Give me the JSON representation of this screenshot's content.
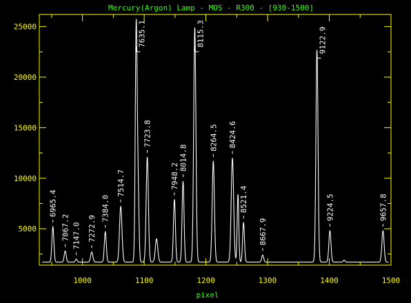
{
  "colors": {
    "background": "#000000",
    "axes": "#ffff00",
    "title": "#39ff14",
    "trace": "#ffffff",
    "labels": "#ffffff"
  },
  "chart_data": {
    "type": "line",
    "title": "Mercury(Argon) Lamp - MOS - R300 - [930-1500]",
    "xlabel": "pixel",
    "ylabel": "",
    "xlim": [
      930,
      1500
    ],
    "ylim": [
      1400,
      26200
    ],
    "xticks": [
      1000,
      1100,
      1200,
      1300,
      1400,
      1500
    ],
    "yticks": [
      5000,
      10000,
      15000,
      20000,
      25000
    ],
    "grid": false,
    "baseline": 1700,
    "peaks": [
      {
        "x": 952,
        "y": 5200,
        "w": 1.6
      },
      {
        "x": 972,
        "y": 2800,
        "w": 1.6
      },
      {
        "x": 990,
        "y": 2000,
        "w": 1.4
      },
      {
        "x": 1015,
        "y": 2700,
        "w": 1.8
      },
      {
        "x": 1037,
        "y": 4700,
        "w": 1.6
      },
      {
        "x": 1062,
        "y": 7200,
        "w": 2.0
      },
      {
        "x": 1087,
        "y": 24700,
        "w": 1.5
      },
      {
        "x": 1090,
        "y": 9000,
        "w": 1.5
      },
      {
        "x": 1105,
        "y": 12100,
        "w": 1.8
      },
      {
        "x": 1120,
        "y": 4000,
        "w": 2.0
      },
      {
        "x": 1149,
        "y": 7900,
        "w": 1.6
      },
      {
        "x": 1163,
        "y": 9700,
        "w": 1.6
      },
      {
        "x": 1182,
        "y": 24900,
        "w": 1.8
      },
      {
        "x": 1212,
        "y": 11700,
        "w": 1.8
      },
      {
        "x": 1243,
        "y": 12000,
        "w": 2.0
      },
      {
        "x": 1252,
        "y": 8400,
        "w": 1.3
      },
      {
        "x": 1261,
        "y": 5600,
        "w": 1.5
      },
      {
        "x": 1292,
        "y": 2400,
        "w": 1.6
      },
      {
        "x": 1380,
        "y": 22700,
        "w": 1.7
      },
      {
        "x": 1401,
        "y": 4800,
        "w": 1.7
      },
      {
        "x": 1424,
        "y": 1900,
        "w": 1.4
      },
      {
        "x": 1487,
        "y": 4800,
        "w": 1.8
      }
    ],
    "annotations": [
      {
        "text": "6965.4",
        "x": 952,
        "y": 5200,
        "bracket": false
      },
      {
        "text": "7067.2",
        "x": 972,
        "y": 2800,
        "bracket": false
      },
      {
        "text": "7147.0",
        "x": 990,
        "y": 2000,
        "bracket": false
      },
      {
        "text": "7272.9",
        "x": 1015,
        "y": 2700,
        "bracket": false
      },
      {
        "text": "7384.0",
        "x": 1037,
        "y": 4700,
        "bracket": false
      },
      {
        "text": "7514.7",
        "x": 1062,
        "y": 7200,
        "bracket": false
      },
      {
        "text": "7635.1",
        "x": 1087,
        "y": 24700,
        "bracket": true
      },
      {
        "text": "7723.8",
        "x": 1105,
        "y": 12100,
        "bracket": false
      },
      {
        "text": "7948.2",
        "x": 1149,
        "y": 7900,
        "bracket": false
      },
      {
        "text": "8014.8",
        "x": 1163,
        "y": 9700,
        "bracket": false
      },
      {
        "text": "8115.3",
        "x": 1182,
        "y": 24900,
        "bracket": true
      },
      {
        "text": "8264.5",
        "x": 1212,
        "y": 11700,
        "bracket": false
      },
      {
        "text": "8424.6",
        "x": 1243,
        "y": 12000,
        "bracket": false
      },
      {
        "text": "8521.4",
        "x": 1261,
        "y": 5600,
        "bracket": false
      },
      {
        "text": "8667.9",
        "x": 1292,
        "y": 2400,
        "bracket": false
      },
      {
        "text": "9122.9",
        "x": 1380,
        "y": 22700,
        "bracket": true
      },
      {
        "text": "9224.5",
        "x": 1401,
        "y": 4800,
        "bracket": false
      },
      {
        "text": "9657.8",
        "x": 1487,
        "y": 4800,
        "bracket": false
      }
    ]
  }
}
